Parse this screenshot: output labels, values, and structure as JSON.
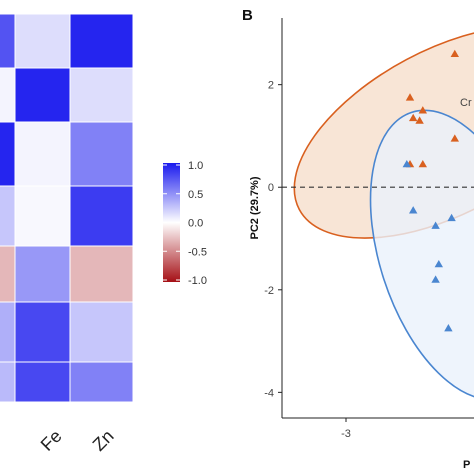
{
  "panel_b_label": "B",
  "chart_data": [
    {
      "type": "heatmap",
      "columns": [
        "",
        "Fe",
        "Zn"
      ],
      "values": [
        [
          0.75,
          0.15,
          0.95
        ],
        [
          0.05,
          0.95,
          0.15
        ],
        [
          0.95,
          0.05,
          0.55
        ],
        [
          0.25,
          0.03,
          0.85
        ],
        [
          -0.3,
          0.45,
          -0.3
        ],
        [
          0.35,
          0.8,
          0.25
        ],
        [
          0.3,
          0.8,
          0.55
        ]
      ],
      "colorbar": {
        "ticks": [
          "1.0",
          "0.5",
          "0.0",
          "-0.5",
          "-1.0"
        ],
        "range": [
          -1.0,
          1.0
        ],
        "low_color": "#a50f15",
        "mid_color": "#ffffff",
        "high_color": "#1a1aee"
      }
    },
    {
      "type": "scatter",
      "panel": "B",
      "ylabel": "PC2 (29.7%)",
      "xlabel_fragment": "P",
      "xlim": [
        -4.0,
        -1.0
      ],
      "ylim": [
        -4.5,
        3.3
      ],
      "x_ticks": [
        "-3"
      ],
      "y_ticks": [
        "2",
        "0",
        "-2",
        "-4"
      ],
      "reference_line": {
        "y": 0,
        "style": "dashed"
      },
      "group_label_fragment": "Cr",
      "series": [
        {
          "color": "#d9601f",
          "fill": "#f7e0cf",
          "points": [
            [
              -1.3,
              2.6
            ],
            [
              -2.0,
              1.75
            ],
            [
              -1.8,
              1.5
            ],
            [
              -1.95,
              1.35
            ],
            [
              -1.85,
              1.3
            ],
            [
              -1.3,
              0.95
            ],
            [
              -2.0,
              0.45
            ],
            [
              -1.8,
              0.45
            ]
          ]
        },
        {
          "color": "#4a86d0",
          "fill": "#eaf1fb",
          "points": [
            [
              -2.05,
              0.45
            ],
            [
              -1.95,
              -0.45
            ],
            [
              -1.6,
              -0.75
            ],
            [
              -1.35,
              -0.6
            ],
            [
              -1.55,
              -1.5
            ],
            [
              -1.6,
              -1.8
            ],
            [
              -1.4,
              -2.75
            ]
          ]
        }
      ]
    }
  ]
}
